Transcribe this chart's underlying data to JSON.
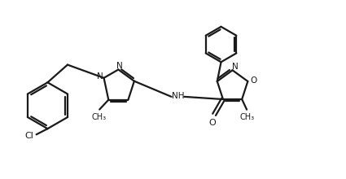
{
  "bg_color": "#ffffff",
  "line_color": "#1a1a1a",
  "lw": 1.6,
  "fig_w": 4.25,
  "fig_h": 2.2,
  "dpi": 100,
  "xlim": [
    0,
    10.5
  ],
  "ylim": [
    0,
    5.5
  ]
}
